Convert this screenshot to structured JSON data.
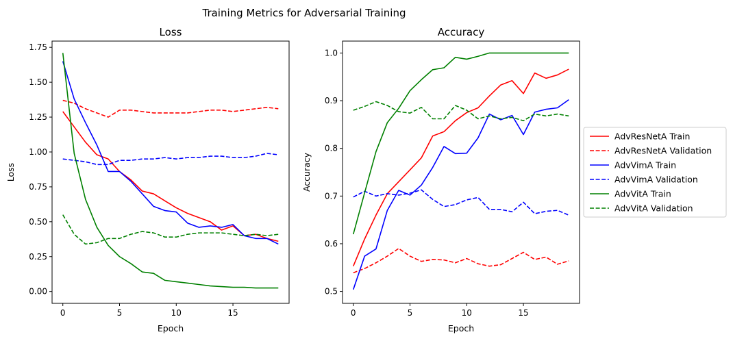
{
  "suptitle": "Training Metrics for Adversarial Training",
  "legend": {
    "entries": [
      {
        "label": "AdvResNetA Train",
        "color": "#ff0000",
        "dash": "solid"
      },
      {
        "label": "AdvResNetA Validation",
        "color": "#ff0000",
        "dash": "dashed"
      },
      {
        "label": "AdvVimA Train",
        "color": "#0000ff",
        "dash": "solid"
      },
      {
        "label": "AdvVimA Validation",
        "color": "#0000ff",
        "dash": "dashed"
      },
      {
        "label": "AdvVitA Train",
        "color": "#008000",
        "dash": "solid"
      },
      {
        "label": "AdvVitA Validation",
        "color": "#008000",
        "dash": "dashed"
      }
    ],
    "placement": "center-right"
  },
  "chart_data": [
    {
      "type": "line",
      "title": "Loss",
      "xlabel": "Epoch",
      "ylabel": "Loss",
      "xlim": [
        -0.95,
        19.95
      ],
      "ylim": [
        -0.085,
        1.795
      ],
      "xticks": [
        0,
        5,
        10,
        15
      ],
      "xtick_labels": [
        "0",
        "5",
        "10",
        "15"
      ],
      "yticks": [
        0.0,
        0.25,
        0.5,
        0.75,
        1.0,
        1.25,
        1.5,
        1.75
      ],
      "ytick_labels": [
        "0.00",
        "0.25",
        "0.50",
        "0.75",
        "1.00",
        "1.25",
        "1.50",
        "1.75"
      ],
      "x": [
        0,
        1,
        2,
        3,
        4,
        5,
        6,
        7,
        8,
        9,
        10,
        11,
        12,
        13,
        14,
        15,
        16,
        17,
        18,
        19
      ],
      "series": [
        {
          "name": "AdvResNetA Train",
          "values": [
            1.29,
            1.18,
            1.07,
            0.98,
            0.95,
            0.86,
            0.8,
            0.72,
            0.7,
            0.65,
            0.6,
            0.56,
            0.53,
            0.5,
            0.44,
            0.47,
            0.4,
            0.41,
            0.38,
            0.36
          ]
        },
        {
          "name": "AdvResNetA Validation",
          "values": [
            1.37,
            1.35,
            1.31,
            1.28,
            1.25,
            1.3,
            1.3,
            1.29,
            1.28,
            1.28,
            1.28,
            1.28,
            1.29,
            1.3,
            1.3,
            1.29,
            1.3,
            1.31,
            1.32,
            1.31
          ]
        },
        {
          "name": "AdvVimA Train",
          "values": [
            1.65,
            1.38,
            1.21,
            1.05,
            0.86,
            0.86,
            0.79,
            0.7,
            0.61,
            0.58,
            0.57,
            0.49,
            0.46,
            0.47,
            0.46,
            0.48,
            0.4,
            0.38,
            0.38,
            0.34
          ]
        },
        {
          "name": "AdvVimA Validation",
          "values": [
            0.95,
            0.94,
            0.93,
            0.91,
            0.91,
            0.94,
            0.94,
            0.95,
            0.95,
            0.96,
            0.95,
            0.96,
            0.96,
            0.97,
            0.97,
            0.96,
            0.96,
            0.97,
            0.99,
            0.98
          ]
        },
        {
          "name": "AdvVitA Train",
          "values": [
            1.71,
            0.99,
            0.66,
            0.46,
            0.33,
            0.25,
            0.2,
            0.14,
            0.13,
            0.08,
            0.07,
            0.06,
            0.05,
            0.04,
            0.035,
            0.03,
            0.03,
            0.025,
            0.025,
            0.025
          ]
        },
        {
          "name": "AdvVitA Validation",
          "values": [
            0.55,
            0.41,
            0.34,
            0.35,
            0.38,
            0.38,
            0.41,
            0.43,
            0.42,
            0.39,
            0.39,
            0.41,
            0.42,
            0.42,
            0.42,
            0.41,
            0.4,
            0.41,
            0.4,
            0.41
          ]
        }
      ]
    },
    {
      "type": "line",
      "title": "Accuracy",
      "xlabel": "Epoch",
      "ylabel": "Accuracy",
      "xlim": [
        -0.95,
        19.95
      ],
      "ylim": [
        0.475,
        1.025
      ],
      "xticks": [
        0,
        5,
        10,
        15
      ],
      "xtick_labels": [
        "0",
        "5",
        "10",
        "15"
      ],
      "yticks": [
        0.5,
        0.6,
        0.7,
        0.8,
        0.9,
        1.0
      ],
      "ytick_labels": [
        "0.5",
        "0.6",
        "0.7",
        "0.8",
        "0.9",
        "1.0"
      ],
      "x": [
        0,
        1,
        2,
        3,
        4,
        5,
        6,
        7,
        8,
        9,
        10,
        11,
        12,
        13,
        14,
        15,
        16,
        17,
        18,
        19
      ],
      "series": [
        {
          "name": "AdvResNetA Train",
          "values": [
            0.553,
            0.61,
            0.66,
            0.705,
            0.73,
            0.755,
            0.78,
            0.826,
            0.835,
            0.858,
            0.875,
            0.885,
            0.91,
            0.933,
            0.942,
            0.915,
            0.958,
            0.947,
            0.954,
            0.966
          ]
        },
        {
          "name": "AdvResNetA Validation",
          "values": [
            0.539,
            0.548,
            0.56,
            0.574,
            0.59,
            0.574,
            0.563,
            0.567,
            0.566,
            0.56,
            0.569,
            0.558,
            0.553,
            0.556,
            0.569,
            0.582,
            0.567,
            0.572,
            0.557,
            0.564
          ]
        },
        {
          "name": "AdvVimA Train",
          "values": [
            0.504,
            0.574,
            0.589,
            0.67,
            0.712,
            0.702,
            0.723,
            0.76,
            0.804,
            0.789,
            0.79,
            0.822,
            0.872,
            0.86,
            0.869,
            0.829,
            0.876,
            0.882,
            0.885,
            0.902
          ]
        },
        {
          "name": "AdvVimA Validation",
          "values": [
            0.698,
            0.71,
            0.7,
            0.705,
            0.702,
            0.706,
            0.713,
            0.693,
            0.678,
            0.682,
            0.692,
            0.697,
            0.672,
            0.672,
            0.667,
            0.687,
            0.663,
            0.668,
            0.67,
            0.66
          ]
        },
        {
          "name": "AdvVitA Train",
          "values": [
            0.62,
            0.707,
            0.793,
            0.854,
            0.884,
            0.921,
            0.944,
            0.965,
            0.969,
            0.991,
            0.987,
            0.993,
            1.0,
            1.0,
            1.0,
            1.0,
            1.0,
            1.0,
            1.0,
            1.0
          ]
        },
        {
          "name": "AdvVitA Validation",
          "values": [
            0.88,
            0.888,
            0.898,
            0.89,
            0.877,
            0.874,
            0.886,
            0.862,
            0.862,
            0.89,
            0.88,
            0.862,
            0.868,
            0.862,
            0.865,
            0.858,
            0.872,
            0.868,
            0.872,
            0.868
          ]
        }
      ]
    }
  ]
}
